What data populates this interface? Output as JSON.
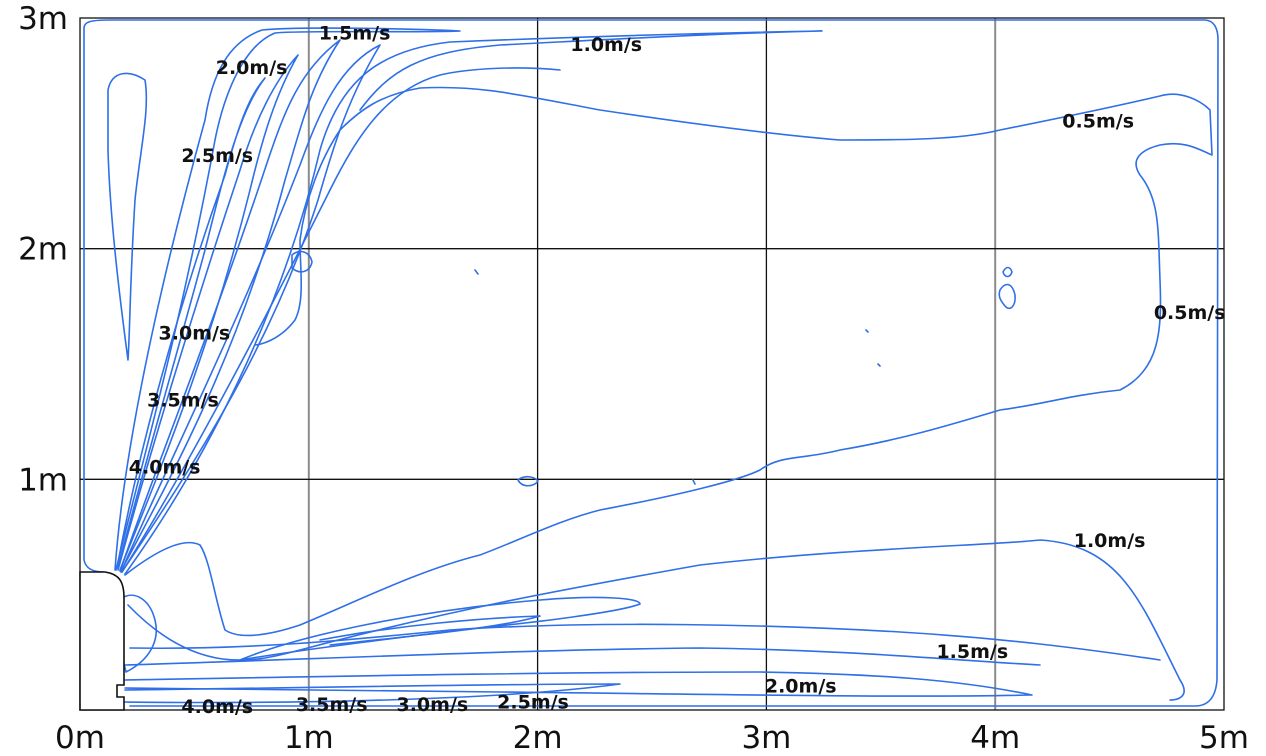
{
  "chart_data": {
    "type": "contour",
    "x_ticks": [
      "0m",
      "1m",
      "2m",
      "3m",
      "4m",
      "5m"
    ],
    "y_ticks": [
      "1m",
      "2m",
      "3m"
    ],
    "xlim": [
      0,
      5
    ],
    "ylim": [
      0,
      3
    ],
    "grid": true,
    "contour_levels": [
      0.5,
      1.0,
      1.5,
      2.0,
      2.5,
      3.0,
      3.5,
      4.0
    ],
    "contour_labels": [
      {
        "text": "1.5m/s",
        "x": 1.2,
        "y": 2.93
      },
      {
        "text": "1.0m/s",
        "x": 2.3,
        "y": 2.88
      },
      {
        "text": "2.0m/s",
        "x": 0.75,
        "y": 2.78
      },
      {
        "text": "0.5m/s",
        "x": 4.45,
        "y": 2.55
      },
      {
        "text": "2.5m/s",
        "x": 0.6,
        "y": 2.4
      },
      {
        "text": "0.5m/s",
        "x": 4.85,
        "y": 1.72
      },
      {
        "text": "3.0m/s",
        "x": 0.5,
        "y": 1.63
      },
      {
        "text": "3.5m/s",
        "x": 0.45,
        "y": 1.34
      },
      {
        "text": "4.0m/s",
        "x": 0.37,
        "y": 1.05
      },
      {
        "text": "1.0m/s",
        "x": 4.5,
        "y": 0.73
      },
      {
        "text": "1.5m/s",
        "x": 3.9,
        "y": 0.25
      },
      {
        "text": "2.0m/s",
        "x": 3.15,
        "y": 0.1
      },
      {
        "text": "4.0m/s",
        "x": 0.6,
        "y": 0.01
      },
      {
        "text": "3.5m/s",
        "x": 1.1,
        "y": 0.02
      },
      {
        "text": "3.0m/s",
        "x": 1.54,
        "y": 0.02
      },
      {
        "text": "2.5m/s",
        "x": 1.98,
        "y": 0.03
      }
    ]
  }
}
